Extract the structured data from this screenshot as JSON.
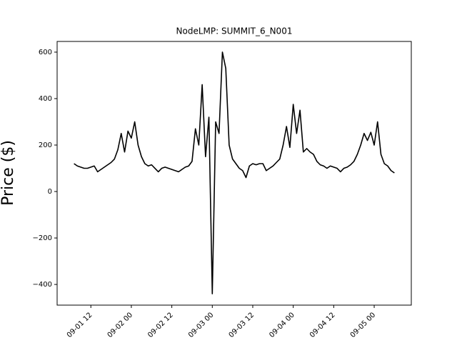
{
  "chart_data": {
    "type": "line",
    "title": "NodeLMP: SUMMIT_6_N001",
    "y_label": "Price ($)",
    "x": [
      "09-01 07",
      "09-01 08",
      "09-01 09",
      "09-01 10",
      "09-01 11",
      "09-01 12",
      "09-01 13",
      "09-01 14",
      "09-01 15",
      "09-01 16",
      "09-01 17",
      "09-01 18",
      "09-01 19",
      "09-01 20",
      "09-01 21",
      "09-01 22",
      "09-01 23",
      "09-02 00",
      "09-02 01",
      "09-02 02",
      "09-02 03",
      "09-02 04",
      "09-02 05",
      "09-02 06",
      "09-02 07",
      "09-02 08",
      "09-02 09",
      "09-02 10",
      "09-02 11",
      "09-02 12",
      "09-02 13",
      "09-02 14",
      "09-02 15",
      "09-02 16",
      "09-02 17",
      "09-02 18",
      "09-02 19",
      "09-02 20",
      "09-02 21",
      "09-02 22",
      "09-02 23",
      "09-03 00",
      "09-03 01",
      "09-03 02",
      "09-03 03",
      "09-03 04",
      "09-03 05",
      "09-03 06",
      "09-03 07",
      "09-03 08",
      "09-03 09",
      "09-03 10",
      "09-03 11",
      "09-03 12",
      "09-03 13",
      "09-03 14",
      "09-03 15",
      "09-03 16",
      "09-03 17",
      "09-03 18",
      "09-03 19",
      "09-03 20",
      "09-03 21",
      "09-03 22",
      "09-03 23",
      "09-04 00",
      "09-04 01",
      "09-04 02",
      "09-04 03",
      "09-04 04",
      "09-04 05",
      "09-04 06",
      "09-04 07",
      "09-04 08",
      "09-04 09",
      "09-04 10",
      "09-04 11",
      "09-04 12",
      "09-04 13",
      "09-04 14",
      "09-04 15",
      "09-04 16",
      "09-04 17",
      "09-04 18",
      "09-04 19",
      "09-04 20",
      "09-04 21",
      "09-04 22",
      "09-04 23",
      "09-05 00",
      "09-05 01",
      "09-05 02",
      "09-05 03",
      "09-05 04",
      "09-05 05",
      "09-05 06"
    ],
    "series": [
      {
        "name": "SUMMIT_6_N001",
        "color": "#000000",
        "values": [
          120,
          110,
          105,
          100,
          100,
          105,
          110,
          85,
          95,
          105,
          115,
          125,
          140,
          180,
          250,
          170,
          260,
          230,
          300,
          200,
          150,
          120,
          110,
          115,
          100,
          85,
          100,
          105,
          100,
          95,
          90,
          85,
          95,
          105,
          110,
          130,
          270,
          200,
          460,
          150,
          320,
          -440,
          300,
          250,
          600,
          530,
          200,
          140,
          120,
          100,
          90,
          60,
          110,
          120,
          115,
          120,
          120,
          90,
          100,
          110,
          125,
          140,
          200,
          280,
          190,
          375,
          250,
          350,
          170,
          185,
          170,
          160,
          130,
          115,
          110,
          100,
          110,
          105,
          100,
          85,
          100,
          105,
          115,
          130,
          160,
          200,
          250,
          220,
          255,
          200,
          300,
          160,
          120,
          110,
          90,
          80
        ]
      }
    ],
    "xlim": [
      "09-01 02",
      "09-05 11"
    ],
    "xticks": [
      "09-01 12",
      "09-02 00",
      "09-02 12",
      "09-03 00",
      "09-03 12",
      "09-04 00",
      "09-04 12",
      "09-05 00"
    ],
    "ylim": [
      -489,
      646
    ],
    "yticks": [
      {
        "value": -400,
        "label": "−400"
      },
      {
        "value": -200,
        "label": "−200"
      },
      0,
      200,
      400,
      600
    ]
  }
}
